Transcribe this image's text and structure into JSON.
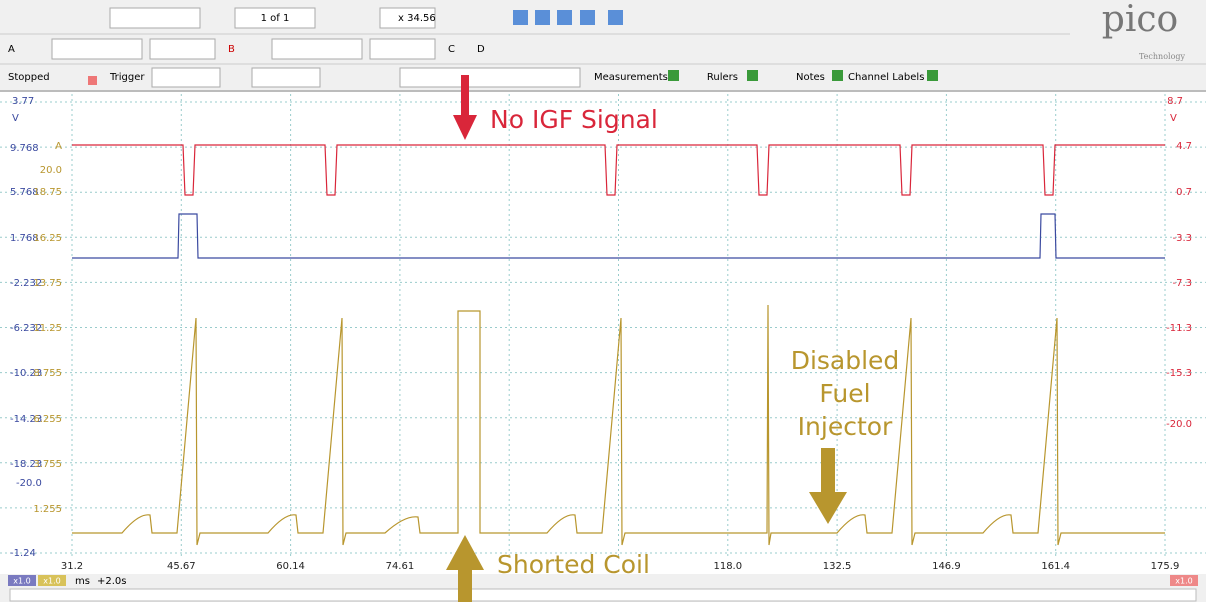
{
  "toolbar": {
    "page": "1 of 1",
    "zoom": "x 34.56",
    "status": "Stopped",
    "trigger": "Trigger",
    "measurements": "Measurements",
    "rulers": "Rulers",
    "notes": "Notes",
    "channel_labels": "Channel Labels",
    "channels": [
      "A",
      "B",
      "C",
      "D"
    ]
  },
  "logo": {
    "name": "pico",
    "tagline": "Technology"
  },
  "axes": {
    "left_blue_top": "3.77",
    "left_blue_unit": "V",
    "left_blue": [
      "9.768",
      "5.768",
      "1.768",
      "-2.232",
      "-6.232",
      "-10.23",
      "-14.23",
      "-18.23"
    ],
    "left_blue_extra": "-20.0",
    "left_blue_bottom": "-1.24",
    "left_gold_unit": "A",
    "left_gold": [
      "20.0",
      "18.75",
      "16.25",
      "13.75",
      "11.25",
      "8.755",
      "6.255",
      "3.755",
      "1.255"
    ],
    "right_red_top": "8.7",
    "right_red_unit": "V",
    "right_red": [
      "4.7",
      "0.7",
      "-3.3",
      "-7.3",
      "-11.3",
      "-15.3",
      "-20.0"
    ],
    "x": [
      "31.2",
      "45.67",
      "60.14",
      "74.61",
      "118.0",
      "132.5",
      "146.9",
      "161.4",
      "175.9"
    ]
  },
  "status_bar": {
    "scale_a": "x1.0",
    "scale_b": "x1.0",
    "unit": "ms",
    "offset": "+2.0s",
    "scale_right": "x1.0"
  },
  "annotations": {
    "no_igf": "No IGF Signal",
    "injector": [
      "Disabled",
      "Fuel",
      "Injector"
    ],
    "coil": "Shorted Coil"
  }
}
